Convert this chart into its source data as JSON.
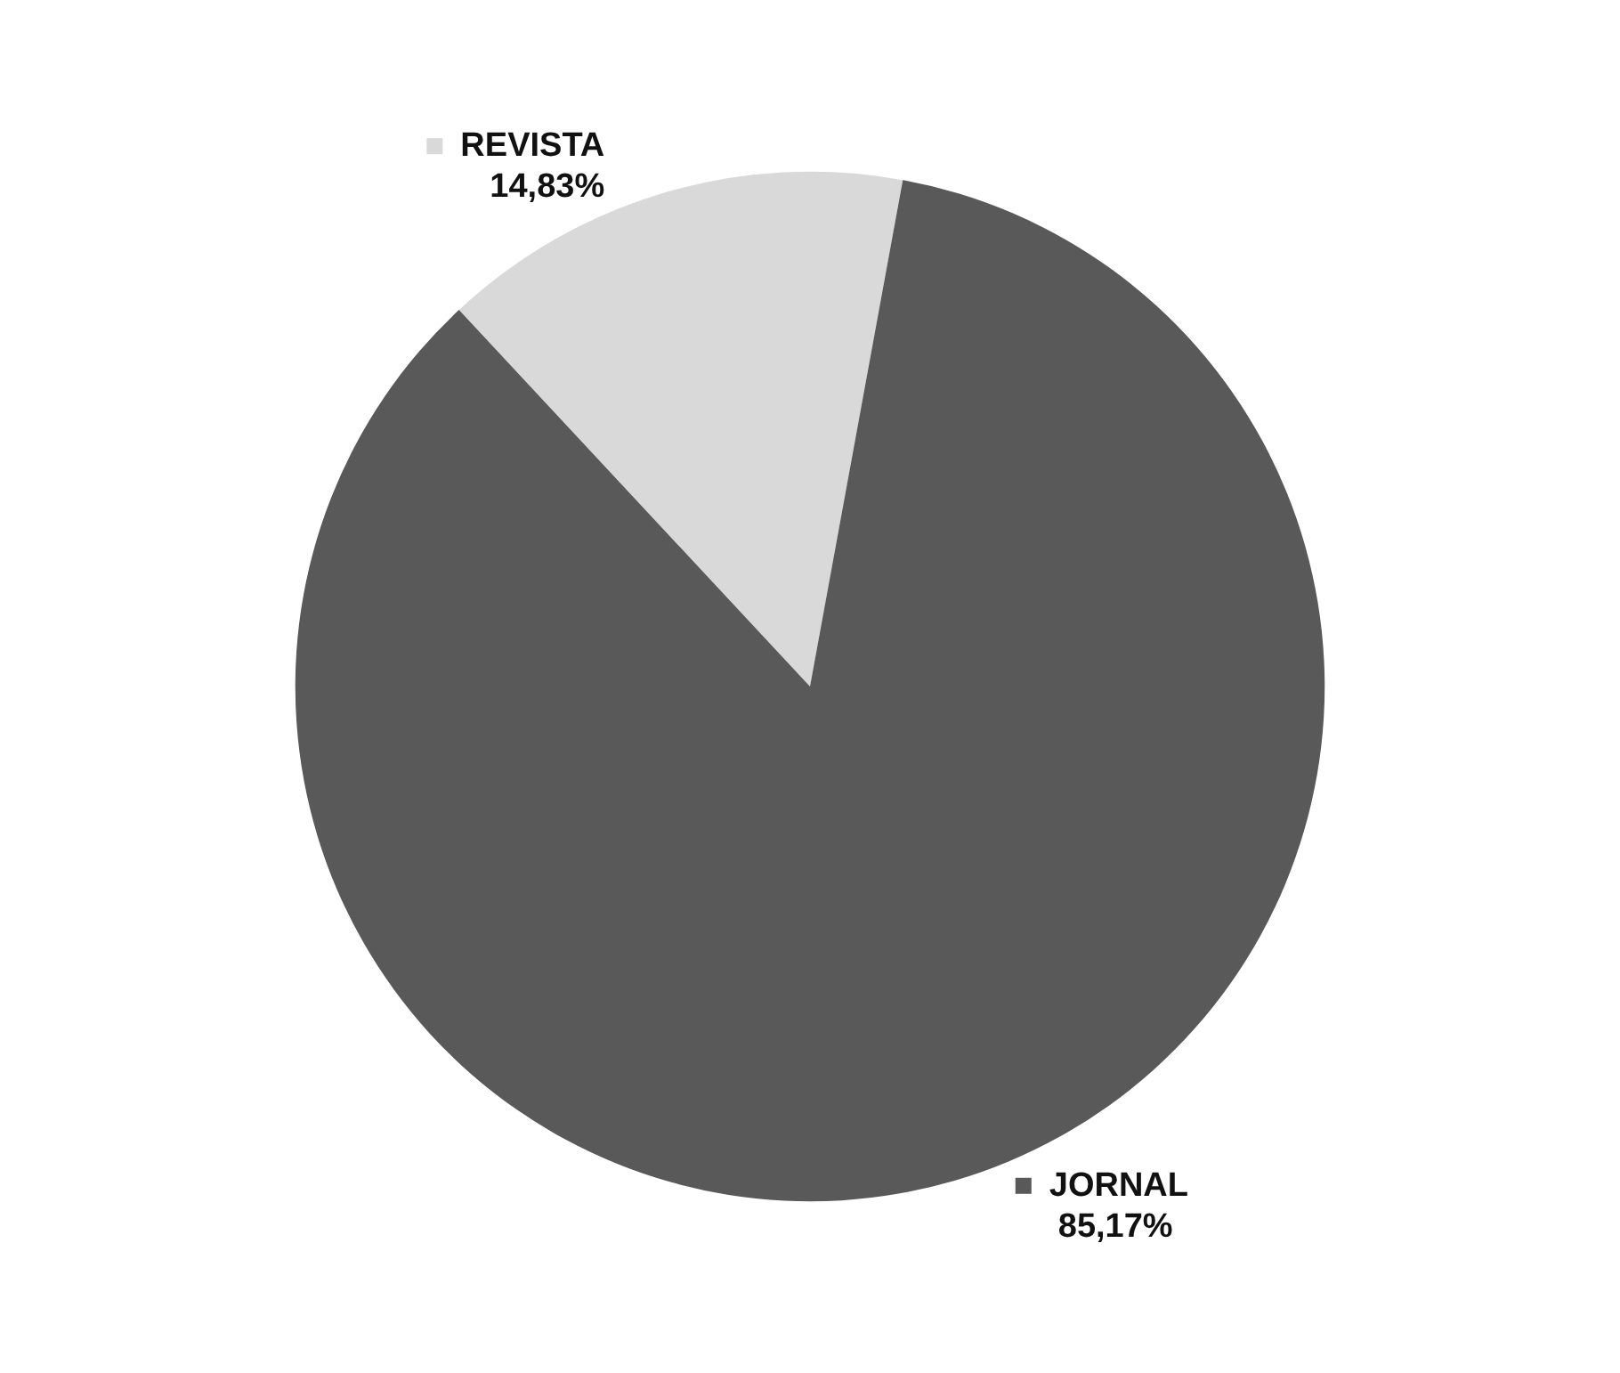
{
  "chart_data": {
    "type": "pie",
    "categories": [
      "REVISTA",
      "JORNAL"
    ],
    "values": [
      14.83,
      85.17
    ],
    "colors": [
      "#d9d9d9",
      "#595959"
    ],
    "value_labels": [
      "14,83%",
      "85,17%"
    ],
    "legend": "top"
  }
}
